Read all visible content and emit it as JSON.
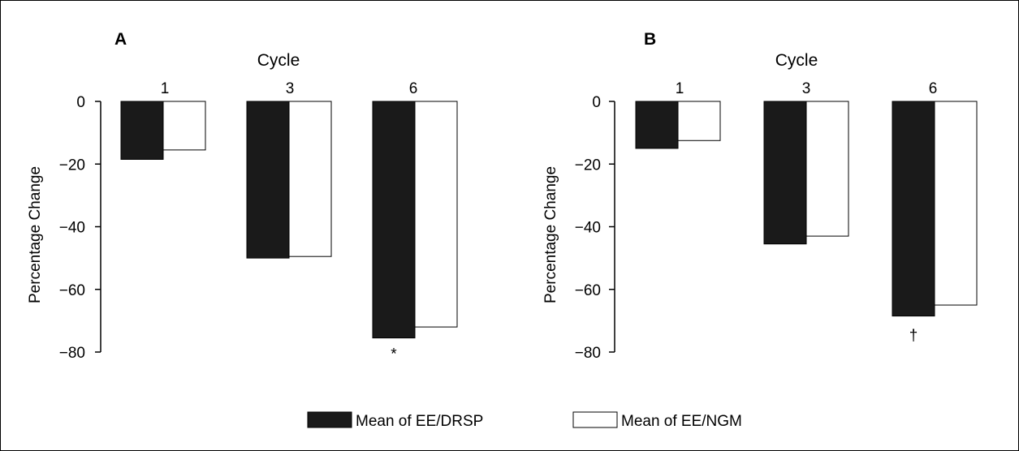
{
  "chart_data": [
    {
      "type": "bar",
      "panel": "A",
      "title": "Cycle",
      "xlabel": "Cycle",
      "ylabel": "Percentage Change",
      "ylim": [
        -80,
        0
      ],
      "yticks": [
        0,
        -20,
        -40,
        -60,
        -80
      ],
      "ytick_labels": [
        "0",
        "−20",
        "−40",
        "−60",
        "−80"
      ],
      "categories": [
        "1",
        "3",
        "6"
      ],
      "series": [
        {
          "name": "Mean of EE/DRSP",
          "color": "#1a1a1a",
          "values": [
            -18.5,
            -50,
            -75.5
          ]
        },
        {
          "name": "Mean of EE/NGM",
          "color": "#ffffff",
          "values": [
            -15.5,
            -49.5,
            -72
          ]
        }
      ],
      "annotations": [
        {
          "category": "6",
          "text": "*"
        }
      ],
      "grid": false,
      "legend": "bottom-center"
    },
    {
      "type": "bar",
      "panel": "B",
      "title": "Cycle",
      "xlabel": "Cycle",
      "ylabel": "Percentage Change",
      "ylim": [
        -80,
        0
      ],
      "yticks": [
        0,
        -20,
        -40,
        -60,
        -80
      ],
      "ytick_labels": [
        "0",
        "−20",
        "−40",
        "−60",
        "−80"
      ],
      "categories": [
        "1",
        "3",
        "6"
      ],
      "series": [
        {
          "name": "Mean of EE/DRSP",
          "color": "#1a1a1a",
          "values": [
            -15,
            -45.5,
            -68.5
          ]
        },
        {
          "name": "Mean of EE/NGM",
          "color": "#ffffff",
          "values": [
            -12.5,
            -43,
            -65
          ]
        }
      ],
      "annotations": [
        {
          "category": "6",
          "text": "†"
        }
      ],
      "grid": false,
      "legend": "bottom-center"
    }
  ],
  "legend": {
    "items": [
      {
        "label": "Mean of EE/DRSP",
        "color": "#1a1a1a"
      },
      {
        "label": "Mean of EE/NGM",
        "color": "#ffffff"
      }
    ]
  }
}
